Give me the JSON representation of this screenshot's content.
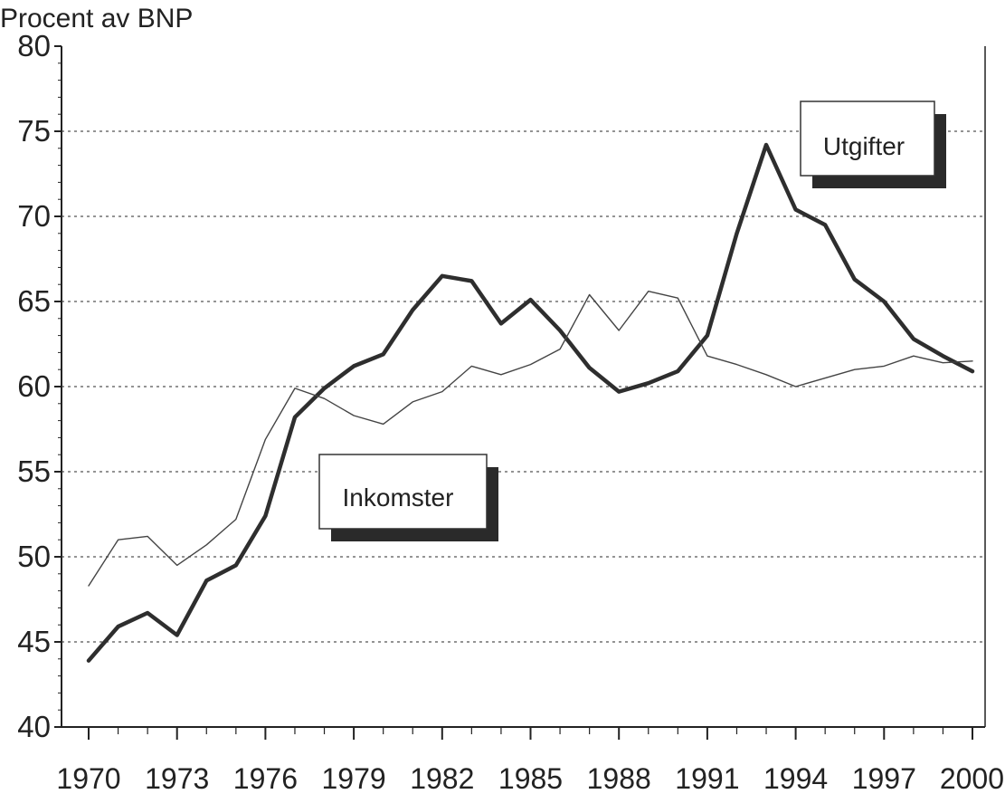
{
  "chart_data": {
    "type": "line",
    "title": "",
    "xlabel": "",
    "ylabel": "Procent av BNP",
    "xlim": [
      1970,
      2000
    ],
    "ylim": [
      40,
      80
    ],
    "x_ticks": [
      1970,
      1973,
      1976,
      1979,
      1982,
      1985,
      1988,
      1991,
      1994,
      1997,
      2000
    ],
    "x_tick_labels": [
      "1970",
      "1973",
      "1976",
      "1979",
      "1982",
      "1985",
      "1988",
      "1991",
      "1994",
      "1997",
      "2000"
    ],
    "y_ticks": [
      40,
      45,
      50,
      55,
      60,
      65,
      70,
      75,
      80
    ],
    "y_tick_labels": [
      "40",
      "45",
      "50",
      "55",
      "60",
      "65",
      "70",
      "75",
      "80"
    ],
    "grid": "horizontal dashed",
    "colors": {
      "line": "#333333",
      "grid": "#555555",
      "axis": "#222222"
    },
    "x": [
      1970,
      1971,
      1972,
      1973,
      1974,
      1975,
      1976,
      1977,
      1978,
      1979,
      1980,
      1981,
      1982,
      1983,
      1984,
      1985,
      1986,
      1987,
      1988,
      1989,
      1990,
      1991,
      1992,
      1993,
      1994,
      1995,
      1996,
      1997,
      1998,
      1999,
      2000
    ],
    "series": [
      {
        "name": "Utgifter",
        "style": "thick",
        "values": [
          43.9,
          45.9,
          46.7,
          45.4,
          48.6,
          49.5,
          52.4,
          58.2,
          59.9,
          61.2,
          61.9,
          64.5,
          66.5,
          66.2,
          63.7,
          65.1,
          63.3,
          61.1,
          59.7,
          60.2,
          60.9,
          63.0,
          69.0,
          74.2,
          70.4,
          69.5,
          66.3,
          65.0,
          62.8,
          61.8,
          60.9
        ]
      },
      {
        "name": "Inkomster",
        "style": "thin",
        "values": [
          48.3,
          51.0,
          51.2,
          49.5,
          50.7,
          52.2,
          56.9,
          59.9,
          59.3,
          58.3,
          57.8,
          59.1,
          59.7,
          61.2,
          60.7,
          61.3,
          62.2,
          65.4,
          63.3,
          65.6,
          65.2,
          61.8,
          61.3,
          60.7,
          60.0,
          60.5,
          61.0,
          61.2,
          61.8,
          61.4,
          61.5
        ]
      }
    ],
    "annotations": [
      {
        "text": "Utgifter",
        "series": "Utgifter"
      },
      {
        "text": "Inkomster",
        "series": "Inkomster"
      }
    ]
  }
}
